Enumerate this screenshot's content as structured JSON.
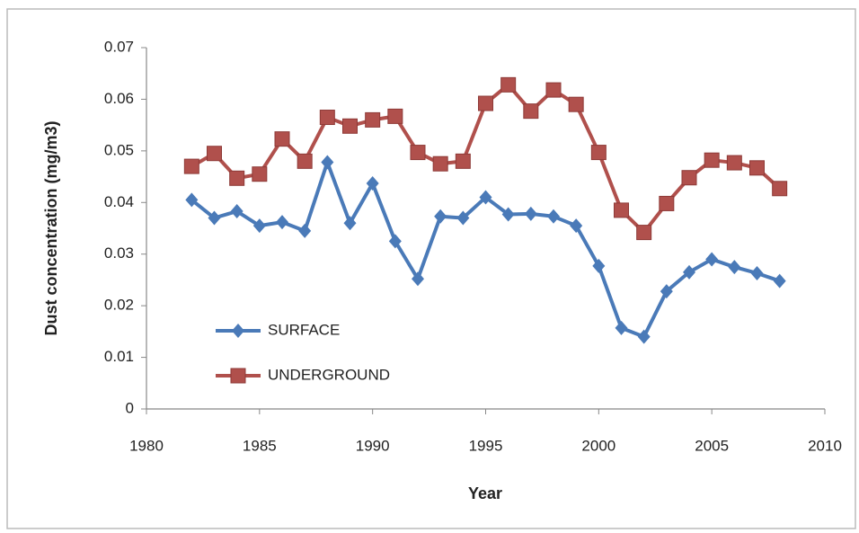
{
  "chart_data": {
    "type": "line",
    "x_label": "Year",
    "y_label": "Dust concentration (mg/m3)",
    "x": [
      1982,
      1983,
      1984,
      1985,
      1986,
      1987,
      1988,
      1989,
      1990,
      1991,
      1992,
      1993,
      1994,
      1995,
      1996,
      1997,
      1998,
      1999,
      2000,
      2001,
      2002,
      2003,
      2004,
      2005,
      2006,
      2007,
      2008
    ],
    "series": [
      {
        "name": "SURFACE",
        "color": "#4a7ab8",
        "marker": "diamond",
        "values": [
          0.0405,
          0.037,
          0.0383,
          0.0355,
          0.0362,
          0.0345,
          0.0478,
          0.036,
          0.0437,
          0.0325,
          0.0252,
          0.0373,
          0.037,
          0.041,
          0.0377,
          0.0378,
          0.0373,
          0.0355,
          0.0277,
          0.0157,
          0.014,
          0.0228,
          0.0265,
          0.029,
          0.0275,
          0.0263,
          0.0248
        ]
      },
      {
        "name": "UNDERGROUND",
        "color": "#b0504c",
        "marker": "square",
        "values": [
          0.047,
          0.0495,
          0.0447,
          0.0455,
          0.0523,
          0.048,
          0.0565,
          0.0548,
          0.056,
          0.0567,
          0.0497,
          0.0475,
          0.048,
          0.0592,
          0.0628,
          0.0577,
          0.0618,
          0.059,
          0.0497,
          0.0385,
          0.0342,
          0.0398,
          0.0448,
          0.0482,
          0.0477,
          0.0467,
          0.0427
        ]
      }
    ],
    "xlim": [
      1980,
      2010
    ],
    "xticks": [
      1980,
      1985,
      1990,
      1995,
      2000,
      2005,
      2010
    ],
    "ylim": [
      0,
      0.07
    ],
    "yticks": [
      0,
      0.01,
      0.02,
      0.03,
      0.04,
      0.05,
      0.06,
      0.07
    ],
    "grid": false,
    "legend": "lower-left"
  }
}
